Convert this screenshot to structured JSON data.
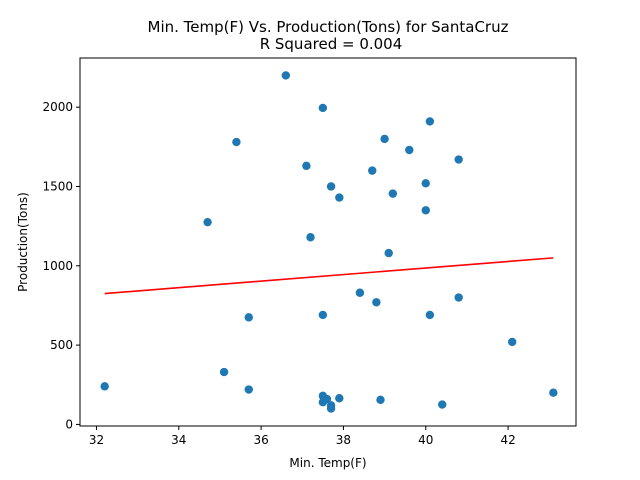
{
  "chart_data": {
    "type": "scatter",
    "title": "Min. Temp(F) Vs. Production(Tons) for SantaCruz",
    "subtitle": "R Squared =  0.004",
    "xlabel": "Min. Temp(F)",
    "ylabel": "Production(Tons)",
    "xlim": [
      31.6,
      43.65
    ],
    "ylim": [
      -10,
      2310
    ],
    "xticks": [
      32,
      34,
      36,
      38,
      40,
      42
    ],
    "yticks": [
      0,
      500,
      1000,
      1500,
      2000
    ],
    "grid": false,
    "colors": {
      "points": "#1f77b4",
      "regression": "#ff0000"
    },
    "points": [
      {
        "x": 32.2,
        "y": 240
      },
      {
        "x": 34.7,
        "y": 1275
      },
      {
        "x": 35.1,
        "y": 330
      },
      {
        "x": 35.4,
        "y": 1780
      },
      {
        "x": 35.7,
        "y": 675
      },
      {
        "x": 35.7,
        "y": 220
      },
      {
        "x": 36.6,
        "y": 2200
      },
      {
        "x": 37.1,
        "y": 1630
      },
      {
        "x": 37.2,
        "y": 1180
      },
      {
        "x": 37.5,
        "y": 1995
      },
      {
        "x": 37.5,
        "y": 690
      },
      {
        "x": 37.5,
        "y": 180
      },
      {
        "x": 37.5,
        "y": 140
      },
      {
        "x": 37.6,
        "y": 160
      },
      {
        "x": 37.7,
        "y": 120
      },
      {
        "x": 37.7,
        "y": 100
      },
      {
        "x": 37.7,
        "y": 1500
      },
      {
        "x": 37.9,
        "y": 1430
      },
      {
        "x": 37.9,
        "y": 165
      },
      {
        "x": 38.4,
        "y": 830
      },
      {
        "x": 38.7,
        "y": 1600
      },
      {
        "x": 38.8,
        "y": 770
      },
      {
        "x": 38.9,
        "y": 155
      },
      {
        "x": 39.0,
        "y": 1800
      },
      {
        "x": 39.1,
        "y": 1080
      },
      {
        "x": 39.2,
        "y": 1455
      },
      {
        "x": 39.6,
        "y": 1730
      },
      {
        "x": 40.0,
        "y": 1520
      },
      {
        "x": 40.0,
        "y": 1350
      },
      {
        "x": 40.1,
        "y": 1910
      },
      {
        "x": 40.1,
        "y": 690
      },
      {
        "x": 40.4,
        "y": 125
      },
      {
        "x": 40.8,
        "y": 1670
      },
      {
        "x": 40.8,
        "y": 800
      },
      {
        "x": 42.1,
        "y": 520
      },
      {
        "x": 43.1,
        "y": 200
      }
    ],
    "regression_line": {
      "x": [
        32.2,
        43.1
      ],
      "y": [
        825,
        1050
      ]
    }
  }
}
